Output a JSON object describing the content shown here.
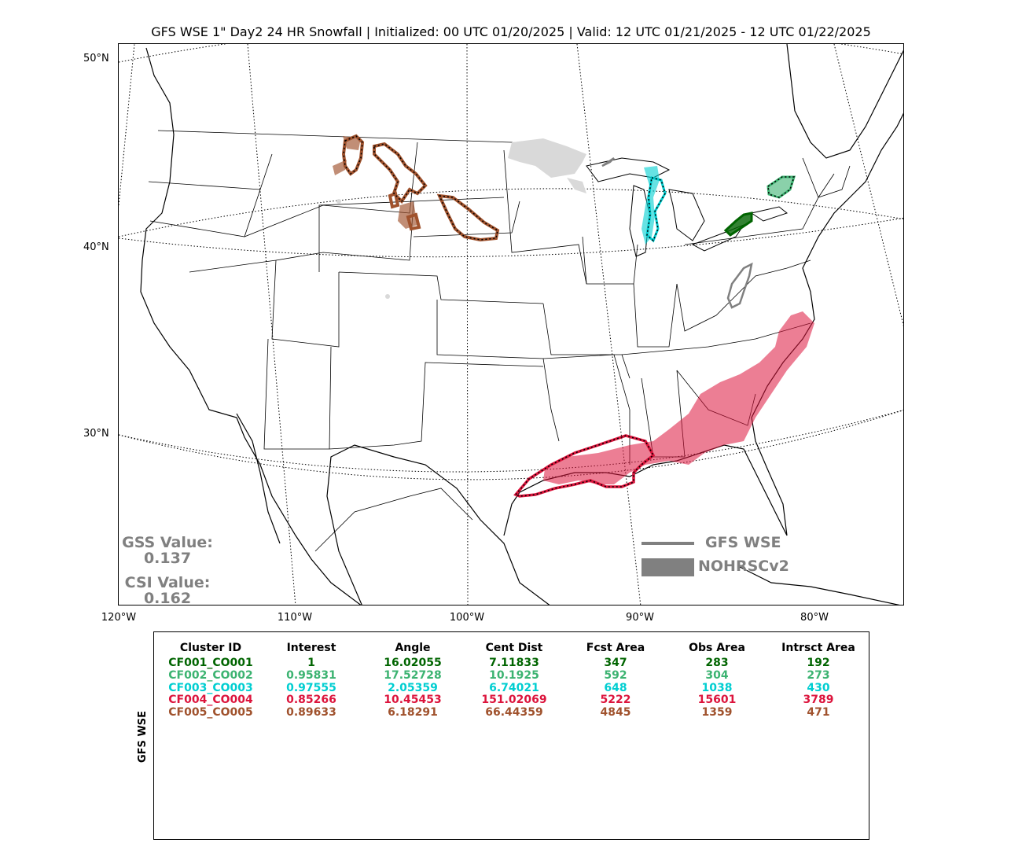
{
  "title": "GFS WSE 1\" Day2 24 HR Snowfall | Initialized: 00 UTC 01/20/2025 | Valid: 12 UTC 01/21/2025 - 12 UTC 01/22/2025",
  "lat_labels": [
    "50°N",
    "40°N",
    "30°N"
  ],
  "lon_labels": [
    "120°W",
    "110°W",
    "100°W",
    "90°W",
    "80°W"
  ],
  "scores": {
    "gss_label": "GSS Value:",
    "gss_value": "0.137",
    "csi_label": "CSI Value:",
    "csi_value": "0.162"
  },
  "legend": {
    "forecast_label": "GFS WSE",
    "observed_label": "NOHRSCv2",
    "color": "#808080"
  },
  "colors": {
    "CF001": "#006400",
    "CF002": "#3cb371",
    "CF003": "#00ced1",
    "CF004": "#dc143c",
    "CF005": "#a0522d",
    "unmatched": "#808080"
  },
  "table": {
    "side_label": "GFS WSE",
    "headers": [
      "Cluster ID",
      "Interest",
      "Angle",
      "Cent Dist",
      "Fcst Area",
      "Obs Area",
      "Intrsct Area"
    ],
    "rows": [
      {
        "color": "#006400",
        "cells": [
          "CF001_CO001",
          "1",
          "16.02055",
          "7.11833",
          "347",
          "283",
          "192"
        ]
      },
      {
        "color": "#3cb371",
        "cells": [
          "CF002_CO002",
          "0.95831",
          "17.52728",
          "10.1925",
          "592",
          "304",
          "273"
        ]
      },
      {
        "color": "#00ced1",
        "cells": [
          "CF003_CO003",
          "0.97555",
          "2.05359",
          "6.74021",
          "648",
          "1038",
          "430"
        ]
      },
      {
        "color": "#dc143c",
        "cells": [
          "CF004_CO004",
          "0.85266",
          "10.45453",
          "151.02069",
          "5222",
          "15601",
          "3789"
        ]
      },
      {
        "color": "#a0522d",
        "cells": [
          "CF005_CO005",
          "0.89633",
          "6.18291",
          "66.44359",
          "4845",
          "1359",
          "471"
        ]
      }
    ]
  }
}
